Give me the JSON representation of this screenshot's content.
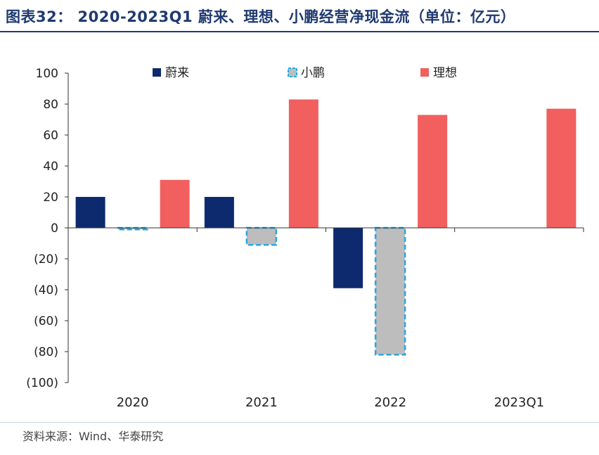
{
  "figure": {
    "title": "图表32： 2020-2023Q1 蔚来、理想、小鹏经营净现金流（单位：亿元）",
    "source": "资料来源：Wind、华泰研究"
  },
  "colors": {
    "title": "#1f3a70",
    "nio": "#0d2a6e",
    "xpeng_fill": "#bdbdbd",
    "xpeng_border": "#2aa5e0",
    "li": "#f15f5f",
    "axis": "#333333"
  },
  "chart_data": {
    "type": "bar",
    "title": "2020-2023Q1 蔚来、理想、小鹏经营净现金流（单位：亿元）",
    "xlabel": "",
    "ylabel": "",
    "categories": [
      "2020",
      "2021",
      "2022",
      "2023Q1"
    ],
    "series": [
      {
        "name": "蔚来",
        "values": [
          20,
          20,
          -39,
          null
        ]
      },
      {
        "name": "小鹏",
        "values": [
          -1,
          -11,
          -82,
          null
        ]
      },
      {
        "name": "理想",
        "values": [
          31,
          83,
          73,
          77
        ]
      }
    ],
    "ylim": [
      -100,
      100
    ],
    "yticks": [
      100,
      80,
      60,
      40,
      20,
      0,
      -20,
      -40,
      -60,
      -80,
      -100
    ],
    "ytick_labels": [
      "100",
      "80",
      "60",
      "40",
      "20",
      "0",
      "(20)",
      "(40)",
      "(60)",
      "(80)",
      "(100)"
    ],
    "grid": false,
    "legend_position": "top"
  }
}
